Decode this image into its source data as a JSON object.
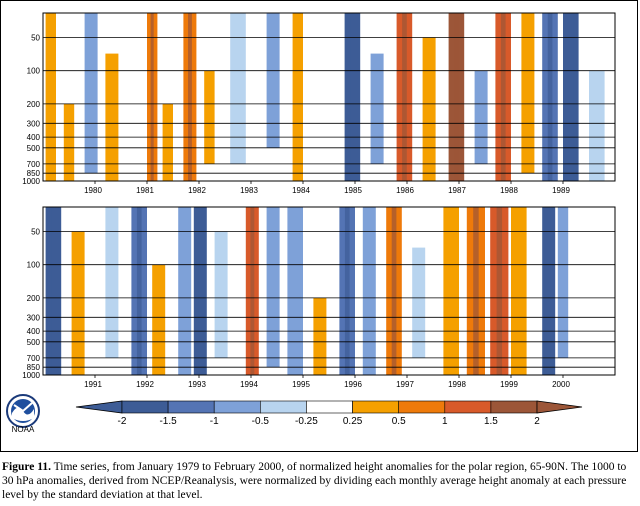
{
  "caption": {
    "figure_label": "Figure 11.",
    "text": "Time series, from January 1979 to February 2000, of normalized height anomalies for the polar region, 65-90N.  The 1000 to 30 hPa anomalies, derived from NCEP/Reanalysis, were normalized by dividing each monthly average height anomaly at each pressure level by the standard deviation at that level."
  },
  "logo_text": "NOAA",
  "colors": {
    "neg_strong": "#3d5c96",
    "neg_mid": "#5474b4",
    "neg_weak": "#7ea1d8",
    "neg_faint": "#b8d4ef",
    "pos_faint": "#ffffff",
    "pos_weak": "#f5a000",
    "pos_mid": "#ee7a0a",
    "pos_strong": "#d85a2a",
    "pos_max": "#9c5638"
  },
  "chart_data": [
    {
      "type": "heatmap",
      "panel": "top",
      "x_ticks": [
        "1980",
        "1981",
        "1982",
        "1983",
        "1984",
        "1985",
        "1986",
        "1987",
        "1988",
        "1989"
      ],
      "y_ticks": [
        "50",
        "100",
        "200",
        "300",
        "400",
        "500",
        "700",
        "850",
        "1000"
      ],
      "y_values": [
        50,
        100,
        200,
        300,
        400,
        500,
        700,
        850,
        1000
      ],
      "xlim": [
        1979.0,
        1990.0
      ],
      "ylim": [
        1000,
        30
      ],
      "y_scale": "log",
      "grid": true,
      "bands": [
        {
          "x": [
            1979.05,
            1979.25
          ],
          "value": 0.5,
          "top": 30,
          "bottom": 1000
        },
        {
          "x": [
            1979.4,
            1979.6
          ],
          "value": 0.5,
          "top": 200,
          "bottom": 1000
        },
        {
          "x": [
            1979.8,
            1980.05
          ],
          "value": -0.5,
          "top": 30,
          "bottom": 850
        },
        {
          "x": [
            1980.2,
            1980.45
          ],
          "value": 0.5,
          "top": 70,
          "bottom": 1000
        },
        {
          "x": [
            1980.55,
            1980.75
          ],
          "value": 0.25,
          "top": 30,
          "bottom": 400
        },
        {
          "x": [
            1981.0,
            1981.2
          ],
          "value": 1.0,
          "top": 30,
          "bottom": 1000
        },
        {
          "x": [
            1981.3,
            1981.5
          ],
          "value": 0.5,
          "top": 200,
          "bottom": 1000
        },
        {
          "x": [
            1981.7,
            1981.95
          ],
          "value": 1.0,
          "top": 30,
          "bottom": 1000
        },
        {
          "x": [
            1982.1,
            1982.3
          ],
          "value": 0.5,
          "top": 100,
          "bottom": 700
        },
        {
          "x": [
            1982.6,
            1982.9
          ],
          "value": -0.25,
          "top": 30,
          "bottom": 700
        },
        {
          "x": [
            1983.3,
            1983.55
          ],
          "value": -0.5,
          "top": 30,
          "bottom": 500
        },
        {
          "x": [
            1983.8,
            1984.0
          ],
          "value": 0.5,
          "top": 30,
          "bottom": 1000
        },
        {
          "x": [
            1984.1,
            1984.35
          ],
          "value": 0.25,
          "top": 30,
          "bottom": 300
        },
        {
          "x": [
            1984.8,
            1985.1
          ],
          "value": -2.0,
          "top": 30,
          "bottom": 1000
        },
        {
          "x": [
            1985.3,
            1985.55
          ],
          "value": -0.5,
          "top": 70,
          "bottom": 700
        },
        {
          "x": [
            1985.8,
            1986.1
          ],
          "value": 1.5,
          "top": 30,
          "bottom": 1000
        },
        {
          "x": [
            1986.3,
            1986.55
          ],
          "value": 0.5,
          "top": 50,
          "bottom": 1000
        },
        {
          "x": [
            1986.8,
            1987.1
          ],
          "value": 2.0,
          "top": 30,
          "bottom": 1000
        },
        {
          "x": [
            1987.3,
            1987.55
          ],
          "value": -0.5,
          "top": 100,
          "bottom": 700
        },
        {
          "x": [
            1987.7,
            1988.0
          ],
          "value": 1.5,
          "top": 30,
          "bottom": 1000
        },
        {
          "x": [
            1988.2,
            1988.45
          ],
          "value": 0.5,
          "top": 30,
          "bottom": 850
        },
        {
          "x": [
            1988.6,
            1988.9
          ],
          "value": -1.0,
          "top": 30,
          "bottom": 1000
        },
        {
          "x": [
            1989.0,
            1989.3
          ],
          "value": -1.5,
          "top": 30,
          "bottom": 1000
        },
        {
          "x": [
            1989.5,
            1989.8
          ],
          "value": -0.25,
          "top": 100,
          "bottom": 1000
        }
      ]
    },
    {
      "type": "heatmap",
      "panel": "bottom",
      "x_ticks": [
        "1991",
        "1992",
        "1993",
        "1994",
        "1995",
        "1996",
        "1997",
        "1998",
        "1999",
        "2000"
      ],
      "y_ticks": [
        "50",
        "100",
        "200",
        "300",
        "400",
        "500",
        "700",
        "850",
        "1000"
      ],
      "y_values": [
        50,
        100,
        200,
        300,
        400,
        500,
        700,
        850,
        1000
      ],
      "xlim": [
        1990.0,
        2001.0
      ],
      "ylim": [
        1000,
        30
      ],
      "y_scale": "log",
      "grid": true,
      "bands": [
        {
          "x": [
            1990.05,
            1990.35
          ],
          "value": -1.5,
          "top": 30,
          "bottom": 1000
        },
        {
          "x": [
            1990.55,
            1990.8
          ],
          "value": 0.5,
          "top": 50,
          "bottom": 1000
        },
        {
          "x": [
            1991.2,
            1991.45
          ],
          "value": -0.25,
          "top": 30,
          "bottom": 700
        },
        {
          "x": [
            1991.7,
            1992.0
          ],
          "value": -1.0,
          "top": 30,
          "bottom": 1000
        },
        {
          "x": [
            1992.1,
            1992.35
          ],
          "value": 0.5,
          "top": 100,
          "bottom": 1000
        },
        {
          "x": [
            1992.6,
            1992.85
          ],
          "value": -0.5,
          "top": 30,
          "bottom": 1000
        },
        {
          "x": [
            1992.9,
            1993.15
          ],
          "value": -1.5,
          "top": 30,
          "bottom": 1000
        },
        {
          "x": [
            1993.3,
            1993.55
          ],
          "value": -0.25,
          "top": 50,
          "bottom": 700
        },
        {
          "x": [
            1993.9,
            1994.15
          ],
          "value": 1.5,
          "top": 30,
          "bottom": 1000
        },
        {
          "x": [
            1994.3,
            1994.55
          ],
          "value": -0.5,
          "top": 30,
          "bottom": 850
        },
        {
          "x": [
            1994.7,
            1995.0
          ],
          "value": -0.5,
          "top": 30,
          "bottom": 1000
        },
        {
          "x": [
            1995.2,
            1995.45
          ],
          "value": 0.5,
          "top": 200,
          "bottom": 1000
        },
        {
          "x": [
            1995.7,
            1996.0
          ],
          "value": -1.0,
          "top": 30,
          "bottom": 1000
        },
        {
          "x": [
            1996.15,
            1996.4
          ],
          "value": -0.5,
          "top": 30,
          "bottom": 1000
        },
        {
          "x": [
            1996.6,
            1996.9
          ],
          "value": 1.0,
          "top": 30,
          "bottom": 1000
        },
        {
          "x": [
            1997.1,
            1997.35
          ],
          "value": -0.25,
          "top": 70,
          "bottom": 700
        },
        {
          "x": [
            1997.7,
            1998.0
          ],
          "value": 0.5,
          "top": 30,
          "bottom": 1000
        },
        {
          "x": [
            1998.15,
            1998.5
          ],
          "value": 1.0,
          "top": 30,
          "bottom": 1000
        },
        {
          "x": [
            1998.6,
            1998.95
          ],
          "value": 1.5,
          "top": 30,
          "bottom": 1000
        },
        {
          "x": [
            1999.0,
            1999.3
          ],
          "value": 0.5,
          "top": 30,
          "bottom": 1000
        },
        {
          "x": [
            1999.6,
            1999.85
          ],
          "value": -1.5,
          "top": 30,
          "bottom": 1000
        },
        {
          "x": [
            1999.9,
            2000.1
          ],
          "value": -0.5,
          "top": 30,
          "bottom": 700
        }
      ]
    }
  ],
  "colorbar": {
    "labels": [
      "-2",
      "-1.5",
      "-1",
      "-0.5",
      "-0.25",
      "0.25",
      "0.5",
      "1",
      "1.5",
      "2"
    ]
  }
}
